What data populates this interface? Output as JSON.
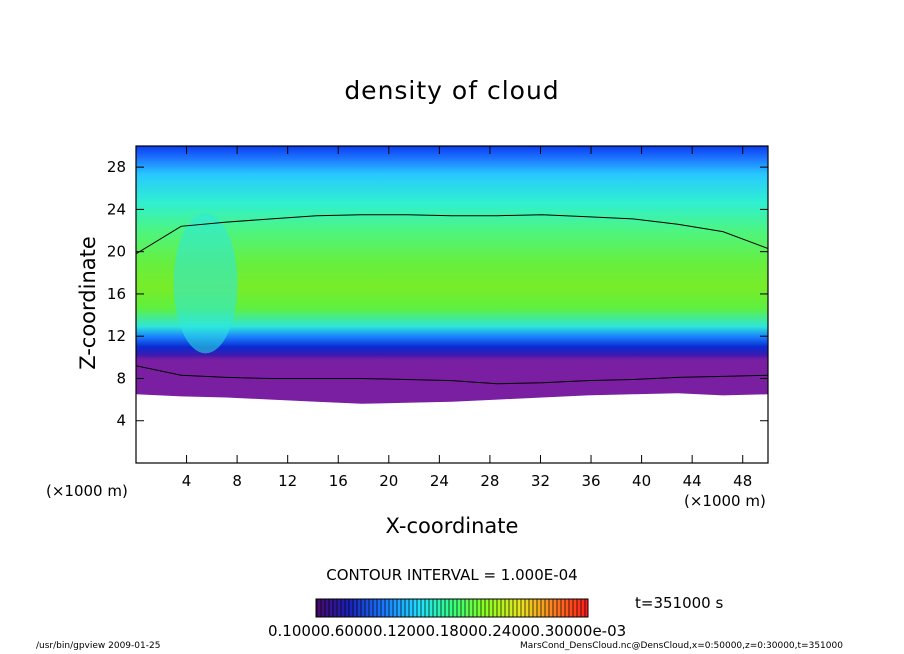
{
  "chart_data": {
    "type": "heatmap",
    "title": "density of cloud",
    "xlabel": "X-coordinate",
    "ylabel": "Z-coordinate",
    "x_unit": "(×1000 m)",
    "y_unit": "(×1000 m)",
    "xlim": [
      0,
      50
    ],
    "ylim": [
      0,
      30
    ],
    "x_ticks": [
      "4",
      "8",
      "12",
      "16",
      "20",
      "24",
      "28",
      "32",
      "36",
      "40",
      "44",
      "48"
    ],
    "y_ticks": [
      "4",
      "8",
      "12",
      "16",
      "20",
      "24",
      "28"
    ],
    "cloud_base_km": [
      6.5,
      6.3,
      6.2,
      6.0,
      5.8,
      5.6,
      5.7,
      5.8,
      6.0,
      6.2,
      6.4,
      6.5,
      6.6,
      6.4,
      6.5
    ],
    "contour_line": {
      "value": "1.000E-04",
      "top_km": [
        19.8,
        22.4,
        22.8,
        23.1,
        23.4,
        23.5,
        23.5,
        23.4,
        23.4,
        23.5,
        23.3,
        23.1,
        22.6,
        21.9,
        20.3
      ],
      "bottom_km": [
        9.2,
        8.3,
        8.1,
        8.0,
        8.0,
        8.0,
        7.9,
        7.8,
        7.5,
        7.6,
        7.8,
        7.9,
        8.1,
        8.2,
        8.3
      ]
    },
    "contour_interval": "CONTOUR INTERVAL = 1.000E-04",
    "time": "t=351000 s",
    "colorbar_labels": "0.10000.60000.12000.18000.24000.30000e-03",
    "colors": {
      "high": "#33ff00",
      "mid": "#00e5ff",
      "low": "#0033cc",
      "base": "#7a1fa2"
    }
  },
  "footer": {
    "left": "/usr/bin/gpview   2009-01-25",
    "right": "MarsCond_DensCloud.nc@DensCloud,x=0:50000,z=0:30000,t=351000"
  }
}
